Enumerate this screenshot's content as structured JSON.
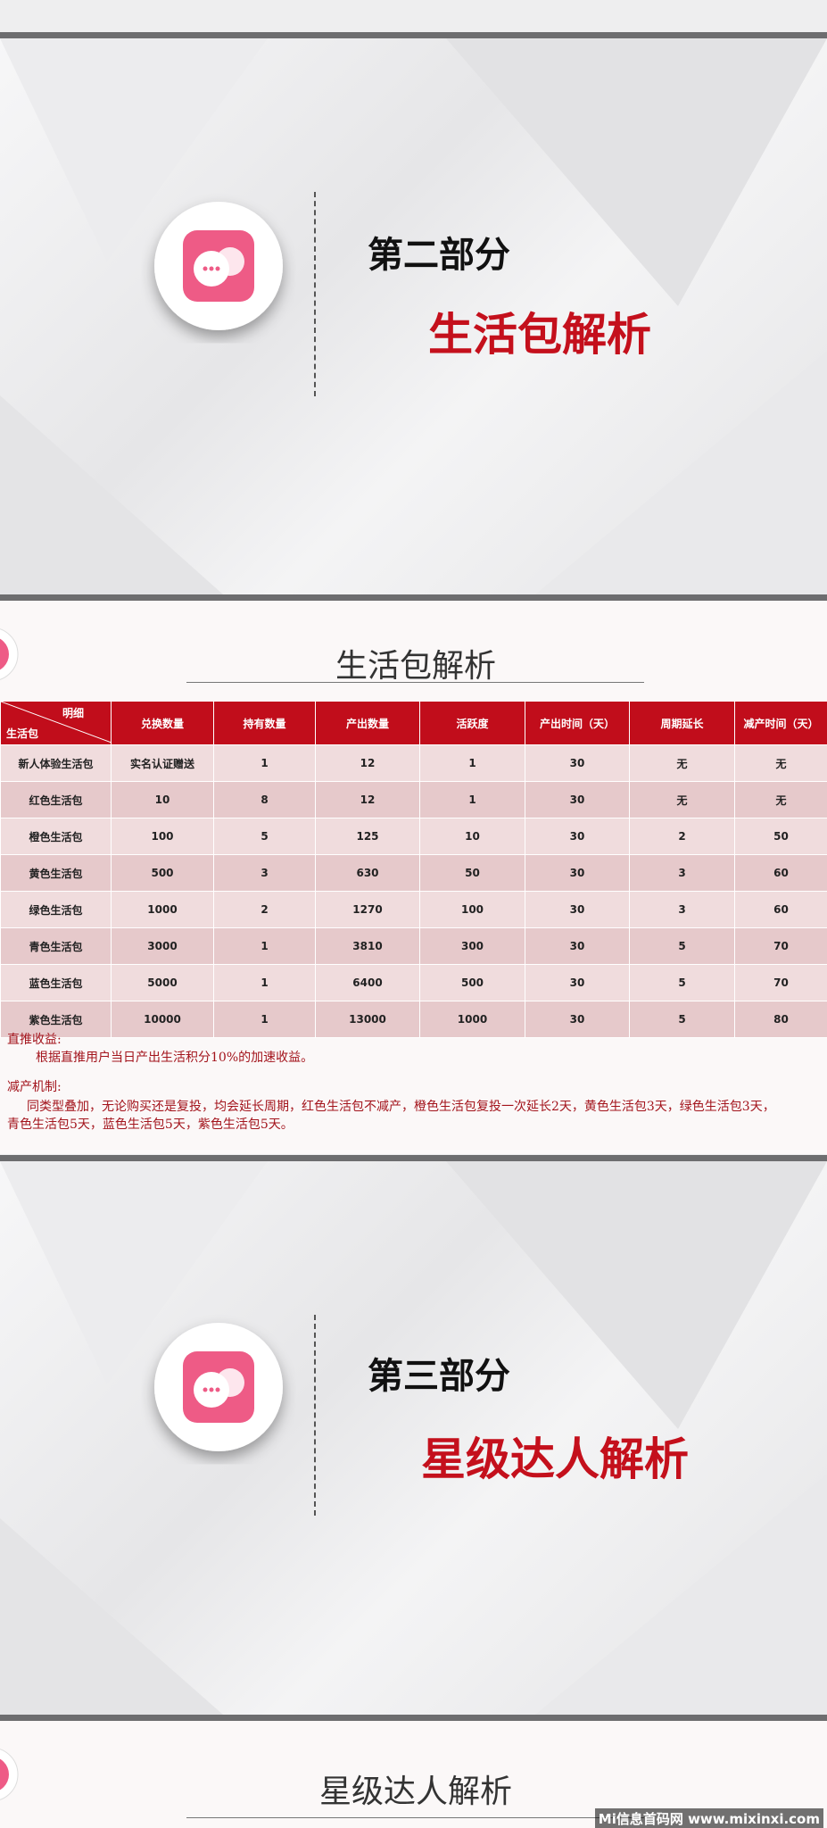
{
  "slide1": {
    "section": "第二部分",
    "title": "生活包解析"
  },
  "slide2": {
    "title": "生活包解析",
    "table": {
      "corner_top": "明细",
      "corner_bottom": "生活包",
      "columns": [
        "兑换数量",
        "持有数量",
        "产出数量",
        "活跃度",
        "产出时间（天）",
        "周期延长",
        "减产时间（天）"
      ],
      "rows": [
        [
          "新人体验生活包",
          "实名认证赠送",
          1,
          12,
          1,
          30,
          "无",
          "无"
        ],
        [
          "红色生活包",
          10,
          8,
          12,
          1,
          30,
          "无",
          "无"
        ],
        [
          "橙色生活包",
          100,
          5,
          125,
          10,
          30,
          2,
          50
        ],
        [
          "黄色生活包",
          500,
          3,
          630,
          50,
          30,
          3,
          60
        ],
        [
          "绿色生活包",
          1000,
          2,
          1270,
          100,
          30,
          3,
          60
        ],
        [
          "青色生活包",
          3000,
          1,
          3810,
          300,
          30,
          5,
          70
        ],
        [
          "蓝色生活包",
          5000,
          1,
          6400,
          500,
          30,
          5,
          70
        ],
        [
          "紫色生活包",
          10000,
          1,
          13000,
          1000,
          30,
          5,
          80
        ]
      ]
    },
    "notes": {
      "direct_title": "直推收益:",
      "direct_text": "根据直推用户当日产出生活积分10%的加速收益。",
      "reduce_title": "减产机制:",
      "reduce_line1": "同类型叠加，无论购买还是复投，均会延长周期，红色生活包不减产，橙色生活包复投一次延长2天，黄色生活包3天，绿色生活包3天，",
      "reduce_line2": "青色生活包5天，蓝色生活包5天，紫色生活包5天。"
    }
  },
  "slide3": {
    "section": "第三部分",
    "title": "星级达人解析"
  },
  "slide4": {
    "title": "星级达人解析"
  },
  "watermark": "Mi信息首码网 www.mixinxi.com"
}
